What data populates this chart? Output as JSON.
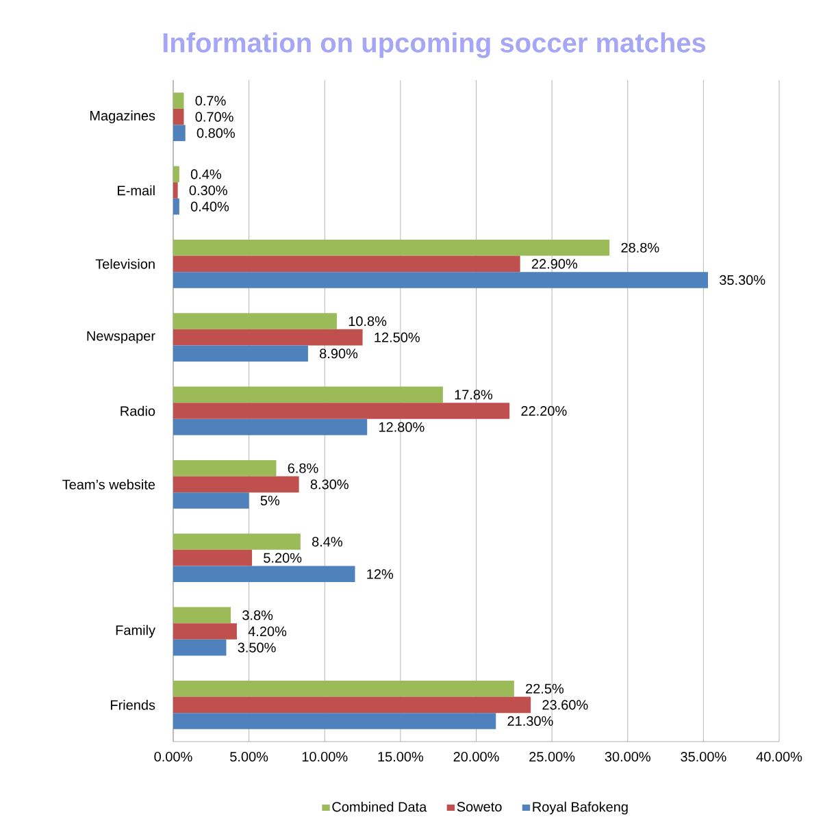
{
  "chart_data": {
    "type": "bar",
    "orientation": "horizontal",
    "title": "Information on upcoming soccer matches",
    "categories": [
      "Magazines",
      "E-mail",
      "Television",
      "Newspaper",
      "Radio",
      "Team’s website",
      null,
      "Family",
      "Friends"
    ],
    "series": [
      {
        "name": "Combined Data",
        "color": "#9bbb59",
        "values": [
          0.7,
          0.4,
          28.8,
          10.8,
          17.8,
          6.8,
          8.4,
          3.8,
          22.5
        ],
        "value_labels": [
          "0.7%",
          "0.4%",
          "28.8%",
          "10.8%",
          "17.8%",
          "6.8%",
          "8.4%",
          "3.8%",
          "22.5%"
        ]
      },
      {
        "name": "Soweto",
        "color": "#c0504d",
        "values": [
          0.7,
          0.3,
          22.9,
          12.5,
          22.2,
          8.3,
          5.2,
          4.2,
          23.6
        ],
        "value_labels": [
          "0.70%",
          "0.30%",
          "22.90%",
          "12.50%",
          "22.20%",
          "8.30%",
          "5.20%",
          "4.20%",
          "23.60%"
        ]
      },
      {
        "name": "Royal Bafokeng",
        "color": "#4f81bd",
        "values": [
          0.8,
          0.4,
          35.3,
          8.9,
          12.8,
          5,
          12,
          3.5,
          21.3
        ],
        "value_labels": [
          "0.80%",
          "0.40%",
          "35.30%",
          "8.90%",
          "12.80%",
          "5%",
          "12%",
          "3.50%",
          "21.30%"
        ]
      }
    ],
    "xlim": [
      0,
      40
    ],
    "xticks": [
      {
        "value": 0,
        "label": "0.00%"
      },
      {
        "value": 5,
        "label": "5.00%"
      },
      {
        "value": 10,
        "label": "10.00%"
      },
      {
        "value": 15,
        "label": "15.00%"
      },
      {
        "value": 20,
        "label": "20.00%"
      },
      {
        "value": 25,
        "label": "25.00%"
      },
      {
        "value": 30,
        "label": "30.00%"
      },
      {
        "value": 35,
        "label": "35.00%"
      },
      {
        "value": 40,
        "label": "40.00%"
      }
    ],
    "grid": "x",
    "legend": "bottom"
  }
}
